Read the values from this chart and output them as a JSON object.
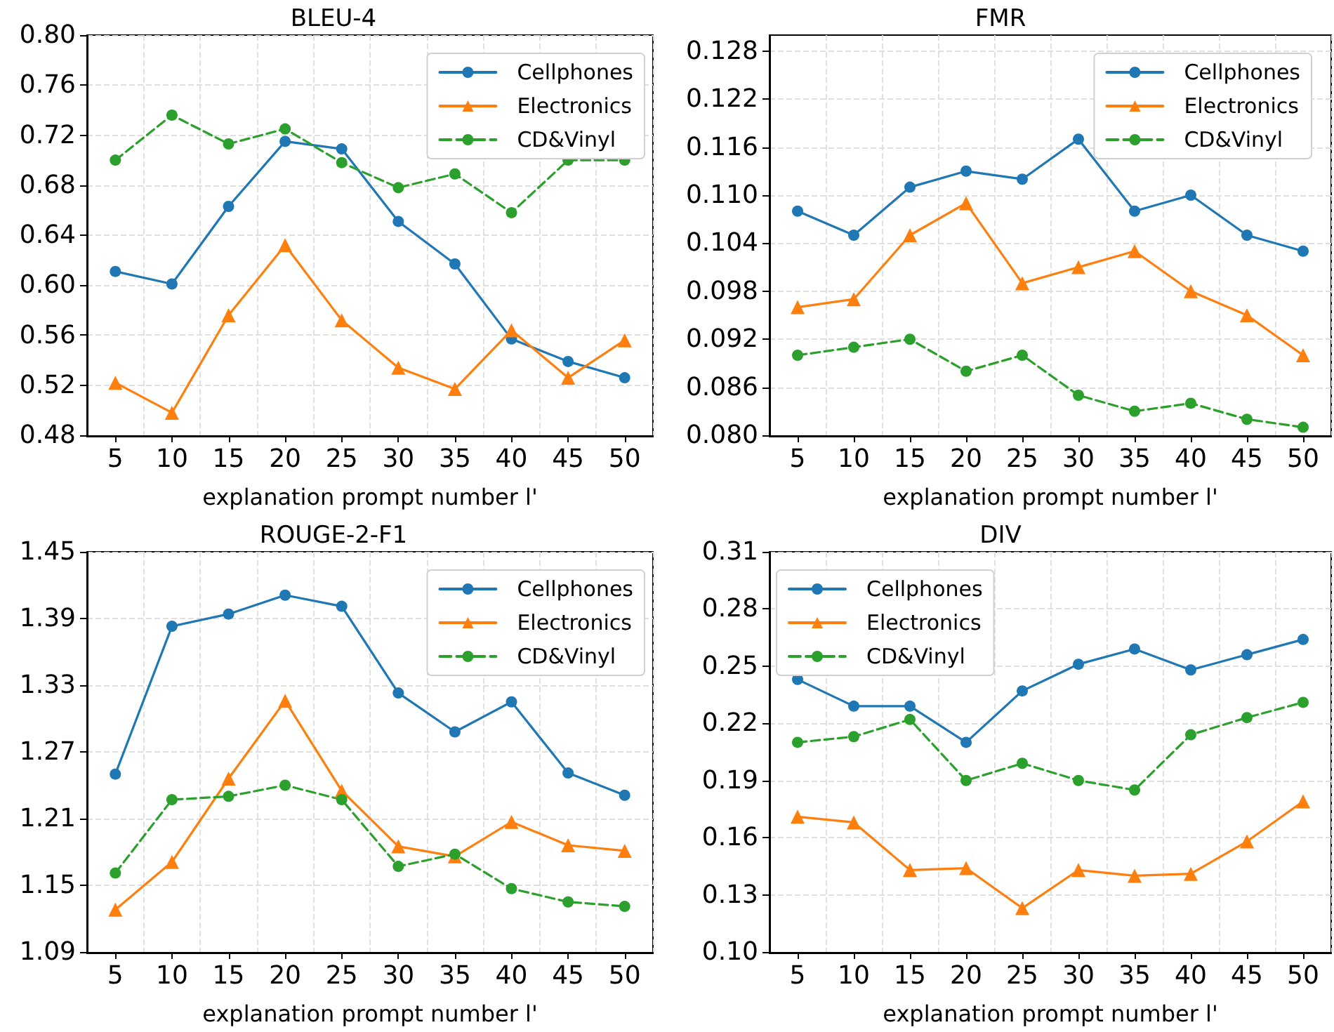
{
  "chart_data": [
    {
      "type": "line",
      "title": "BLEU-4",
      "xlabel": "explanation prompt number l'",
      "categories": [
        "5",
        "10",
        "15",
        "20",
        "25",
        "30",
        "35",
        "40",
        "45",
        "50"
      ],
      "series": [
        {
          "name": "Cellphones",
          "color": "#1f77b4",
          "marker": "circle",
          "line_style": "solid",
          "values": [
            0.611,
            0.601,
            0.663,
            0.715,
            0.709,
            0.651,
            0.617,
            0.557,
            0.539,
            0.526
          ]
        },
        {
          "name": "Electronics",
          "color": "#ff7f0e",
          "marker": "triangle",
          "line_style": "solid",
          "values": [
            0.522,
            0.498,
            0.576,
            0.632,
            0.572,
            0.534,
            0.517,
            0.564,
            0.526,
            0.556
          ]
        },
        {
          "name": "CD&Vinyl",
          "color": "#2ca02c",
          "marker": "circle",
          "line_style": "dashed",
          "values": [
            0.7,
            0.736,
            0.713,
            0.725,
            0.698,
            0.678,
            0.689,
            0.658,
            0.7,
            0.7
          ]
        }
      ],
      "ylim": [
        0.48,
        0.8
      ],
      "yticks": [
        {
          "value": 0.48,
          "label": "0.48"
        },
        0.52,
        0.56,
        {
          "value": 0.6,
          "label": "0.60"
        },
        0.64,
        0.68,
        0.72,
        0.76,
        {
          "value": 0.8,
          "label": "0.80"
        }
      ],
      "grid": true,
      "legend": "top right"
    },
    {
      "type": "line",
      "title": "FMR",
      "xlabel": "explanation prompt number l'",
      "categories": [
        "5",
        "10",
        "15",
        "20",
        "25",
        "30",
        "35",
        "40",
        "45",
        "50"
      ],
      "series": [
        {
          "name": "Cellphones",
          "color": "#1f77b4",
          "marker": "circle",
          "line_style": "solid",
          "values": [
            0.108,
            0.105,
            0.111,
            0.113,
            0.112,
            0.117,
            0.108,
            0.11,
            0.105,
            0.103
          ]
        },
        {
          "name": "Electronics",
          "color": "#ff7f0e",
          "marker": "triangle",
          "line_style": "solid",
          "values": [
            0.096,
            0.097,
            0.105,
            0.109,
            0.099,
            0.101,
            0.103,
            0.098,
            0.095,
            0.09
          ]
        },
        {
          "name": "CD&Vinyl",
          "color": "#2ca02c",
          "marker": "circle",
          "line_style": "dashed",
          "values": [
            0.09,
            0.091,
            0.092,
            0.088,
            0.09,
            0.085,
            0.083,
            0.084,
            0.082,
            0.081
          ]
        }
      ],
      "ylim": [
        0.08,
        0.13
      ],
      "yticks": [
        {
          "value": 0.08,
          "label": "0.080"
        },
        {
          "value": 0.086,
          "label": "0.086"
        },
        {
          "value": 0.092,
          "label": "0.092"
        },
        {
          "value": 0.098,
          "label": "0.098"
        },
        {
          "value": 0.104,
          "label": "0.104"
        },
        {
          "value": 0.11,
          "label": "0.110"
        },
        {
          "value": 0.116,
          "label": "0.116"
        },
        {
          "value": 0.122,
          "label": "0.122"
        },
        {
          "value": 0.128,
          "label": "0.128"
        }
      ],
      "grid": true,
      "legend": "top right"
    },
    {
      "type": "line",
      "title": "ROUGE-2-F1",
      "xlabel": "explanation prompt number l'",
      "categories": [
        "5",
        "10",
        "15",
        "20",
        "25",
        "30",
        "35",
        "40",
        "45",
        "50"
      ],
      "series": [
        {
          "name": "Cellphones",
          "color": "#1f77b4",
          "marker": "circle",
          "line_style": "solid",
          "values": [
            1.25,
            1.383,
            1.394,
            1.411,
            1.401,
            1.323,
            1.288,
            1.315,
            1.251,
            1.231
          ]
        },
        {
          "name": "Electronics",
          "color": "#ff7f0e",
          "marker": "triangle",
          "line_style": "solid",
          "values": [
            1.128,
            1.171,
            1.246,
            1.316,
            1.235,
            1.185,
            1.176,
            1.207,
            1.186,
            1.181
          ]
        },
        {
          "name": "CD&Vinyl",
          "color": "#2ca02c",
          "marker": "circle",
          "line_style": "dashed",
          "values": [
            1.161,
            1.227,
            1.23,
            1.24,
            1.227,
            1.167,
            1.178,
            1.147,
            1.135,
            1.131
          ]
        }
      ],
      "ylim": [
        1.09,
        1.45
      ],
      "yticks": [
        1.09,
        1.15,
        1.21,
        1.27,
        1.33,
        1.39,
        1.45
      ],
      "grid": true,
      "legend": "top right"
    },
    {
      "type": "line",
      "title": "DIV",
      "xlabel": "explanation prompt number l'",
      "categories": [
        "5",
        "10",
        "15",
        "20",
        "25",
        "30",
        "35",
        "40",
        "45",
        "50"
      ],
      "series": [
        {
          "name": "Cellphones",
          "color": "#1f77b4",
          "marker": "circle",
          "line_style": "solid",
          "values": [
            0.243,
            0.229,
            0.229,
            0.21,
            0.237,
            0.251,
            0.259,
            0.248,
            0.256,
            0.264
          ]
        },
        {
          "name": "Electronics",
          "color": "#ff7f0e",
          "marker": "triangle",
          "line_style": "solid",
          "values": [
            0.171,
            0.168,
            0.143,
            0.144,
            0.123,
            0.143,
            0.14,
            0.141,
            0.158,
            0.179
          ]
        },
        {
          "name": "CD&Vinyl",
          "color": "#2ca02c",
          "marker": "circle",
          "line_style": "dashed",
          "values": [
            0.21,
            0.213,
            0.222,
            0.19,
            0.199,
            0.19,
            0.185,
            0.214,
            0.223,
            0.231
          ]
        }
      ],
      "ylim": [
        0.1,
        0.31
      ],
      "yticks": [
        {
          "value": 0.1,
          "label": "0.10"
        },
        0.13,
        0.16,
        0.19,
        0.22,
        0.25,
        0.28,
        0.31
      ],
      "grid": true,
      "legend": "top left"
    }
  ]
}
